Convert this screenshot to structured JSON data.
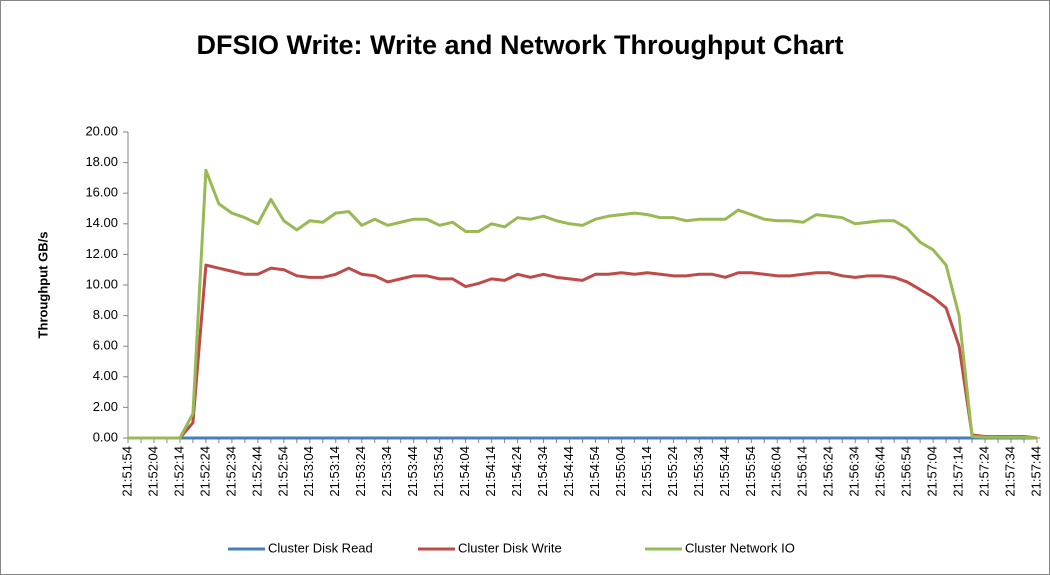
{
  "chart_data": {
    "type": "line",
    "title": "DFSIO Write: Write and Network Throughput Chart",
    "y_label": "Throughput GB/s",
    "categories": [
      "21:51:54",
      null,
      "21:52:04",
      null,
      "21:52:14",
      null,
      "21:52:24",
      null,
      "21:52:34",
      null,
      "21:52:44",
      null,
      "21:52:54",
      null,
      "21:53:04",
      null,
      "21:53:14",
      null,
      "21:53:24",
      null,
      "21:53:34",
      null,
      "21:53:44",
      null,
      "21:53:54",
      null,
      "21:54:04",
      null,
      "21:54:14",
      null,
      "21:54:24",
      null,
      "21:54:34",
      null,
      "21:54:44",
      null,
      "21:54:54",
      null,
      "21:55:04",
      null,
      "21:55:14",
      null,
      "21:55:24",
      null,
      "21:55:34",
      null,
      "21:55:44",
      null,
      "21:55:54",
      null,
      "21:56:04",
      null,
      "21:56:14",
      null,
      "21:56:24",
      null,
      "21:56:34",
      null,
      "21:56:44",
      null,
      "21:56:54",
      null,
      "21:57:04",
      null,
      "21:57:14",
      null,
      "21:57:24",
      null,
      "21:57:34",
      null,
      "21:57:44"
    ],
    "series": [
      {
        "name": "Cluster Disk Read",
        "color": "#4a7ebb",
        "values": [
          0,
          0,
          0,
          0,
          0,
          0,
          0,
          0,
          0,
          0,
          0,
          0,
          0,
          0,
          0,
          0,
          0,
          0,
          0,
          0,
          0,
          0,
          0,
          0,
          0,
          0,
          0,
          0,
          0,
          0,
          0,
          0,
          0,
          0,
          0,
          0,
          0,
          0,
          0,
          0,
          0,
          0,
          0,
          0,
          0,
          0,
          0,
          0,
          0,
          0,
          0,
          0,
          0,
          0,
          0,
          0,
          0,
          0,
          0,
          0,
          0,
          0,
          0,
          0,
          0,
          0,
          0,
          0,
          0,
          0,
          0
        ]
      },
      {
        "name": "Cluster Disk Write",
        "color": "#be4b48",
        "values": [
          0,
          0,
          0,
          0,
          0,
          1.0,
          11.3,
          11.1,
          10.9,
          10.7,
          10.7,
          11.1,
          11.0,
          10.6,
          10.5,
          10.5,
          10.7,
          11.1,
          10.7,
          10.6,
          10.2,
          10.4,
          10.6,
          10.6,
          10.4,
          10.4,
          9.9,
          10.1,
          10.4,
          10.3,
          10.7,
          10.5,
          10.7,
          10.5,
          10.4,
          10.3,
          10.7,
          10.7,
          10.8,
          10.7,
          10.8,
          10.7,
          10.6,
          10.6,
          10.7,
          10.7,
          10.5,
          10.8,
          10.8,
          10.7,
          10.6,
          10.6,
          10.7,
          10.8,
          10.8,
          10.6,
          10.5,
          10.6,
          10.6,
          10.5,
          10.2,
          9.7,
          9.2,
          8.5,
          6.0,
          0.2,
          0.1,
          0.1,
          0.1,
          0.1,
          0
        ]
      },
      {
        "name": "Cluster Network IO",
        "color": "#98b954",
        "values": [
          0,
          0,
          0,
          0,
          0,
          1.6,
          17.5,
          15.3,
          14.7,
          14.4,
          14.0,
          15.6,
          14.2,
          13.6,
          14.2,
          14.1,
          14.7,
          14.8,
          13.9,
          14.3,
          13.9,
          14.1,
          14.3,
          14.3,
          13.9,
          14.1,
          13.5,
          13.5,
          14.0,
          13.8,
          14.4,
          14.3,
          14.5,
          14.2,
          14.0,
          13.9,
          14.3,
          14.5,
          14.6,
          14.7,
          14.6,
          14.4,
          14.4,
          14.2,
          14.3,
          14.3,
          14.3,
          14.9,
          14.6,
          14.3,
          14.2,
          14.2,
          14.1,
          14.6,
          14.5,
          14.4,
          14.0,
          14.1,
          14.2,
          14.2,
          13.7,
          12.8,
          12.3,
          11.3,
          8.0,
          0.1,
          0.05,
          0.05,
          0.05,
          0.05,
          0
        ]
      }
    ],
    "ylim": [
      0,
      20
    ],
    "yticks": [
      {
        "value": 0,
        "label": "0.00"
      },
      {
        "value": 2,
        "label": "2.00"
      },
      {
        "value": 4,
        "label": "4.00"
      },
      {
        "value": 6,
        "label": "6.00"
      },
      {
        "value": 8,
        "label": "8.00"
      },
      {
        "value": 10,
        "label": "10.00"
      },
      {
        "value": 12,
        "label": "12.00"
      },
      {
        "value": 14,
        "label": "14.00"
      },
      {
        "value": 16,
        "label": "16.00"
      },
      {
        "value": 18,
        "label": "18.00"
      },
      {
        "value": 20,
        "label": "20.00"
      }
    ],
    "grid": false,
    "legend": "bottom"
  }
}
